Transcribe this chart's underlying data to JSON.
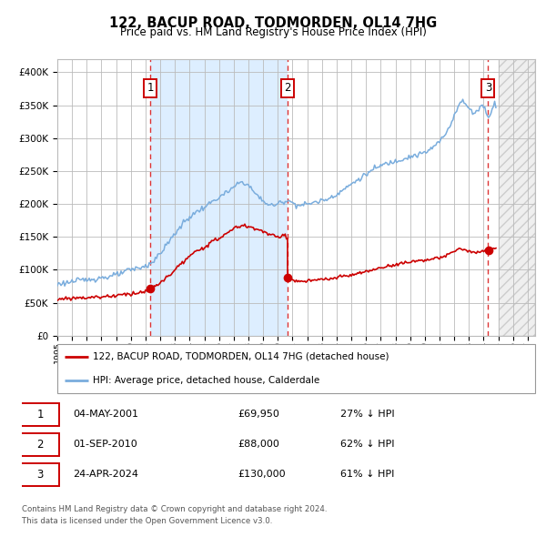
{
  "title": "122, BACUP ROAD, TODMORDEN, OL14 7HG",
  "subtitle": "Price paid vs. HM Land Registry's House Price Index (HPI)",
  "legend_line1": "122, BACUP ROAD, TODMORDEN, OL14 7HG (detached house)",
  "legend_line2": "HPI: Average price, detached house, Calderdale",
  "footer1": "Contains HM Land Registry data © Crown copyright and database right 2024.",
  "footer2": "This data is licensed under the Open Government Licence v3.0.",
  "sale_events": [
    {
      "num": 1,
      "date": "04-MAY-2001",
      "price": 69950,
      "pct": "27% ↓ HPI",
      "x_year": 2001.34
    },
    {
      "num": 2,
      "date": "01-SEP-2010",
      "price": 88000,
      "pct": "62% ↓ HPI",
      "x_year": 2010.67
    },
    {
      "num": 3,
      "date": "24-APR-2024",
      "price": 130000,
      "pct": "61% ↓ HPI",
      "x_year": 2024.31
    }
  ],
  "red_line_color": "#cc0000",
  "blue_line_color": "#7aaddd",
  "shaded_region_color": "#ddeeff",
  "dashed_line_color": "#dd3333",
  "grid_color": "#bbbbbb",
  "background_color": "#ffffff",
  "ylim": [
    0,
    420000
  ],
  "xlim_start": 1995.0,
  "xlim_end": 2027.5,
  "future_start": 2025.0,
  "yticks": [
    0,
    50000,
    100000,
    150000,
    200000,
    250000,
    300000,
    350000,
    400000
  ],
  "ytick_labels": [
    "£0",
    "£50K",
    "£100K",
    "£150K",
    "£200K",
    "£250K",
    "£300K",
    "£350K",
    "£400K"
  ],
  "xtick_years": [
    1995,
    1996,
    1997,
    1998,
    1999,
    2000,
    2001,
    2002,
    2003,
    2004,
    2005,
    2006,
    2007,
    2008,
    2009,
    2010,
    2011,
    2012,
    2013,
    2014,
    2015,
    2016,
    2017,
    2018,
    2019,
    2020,
    2021,
    2022,
    2023,
    2024,
    2025,
    2026,
    2027
  ]
}
